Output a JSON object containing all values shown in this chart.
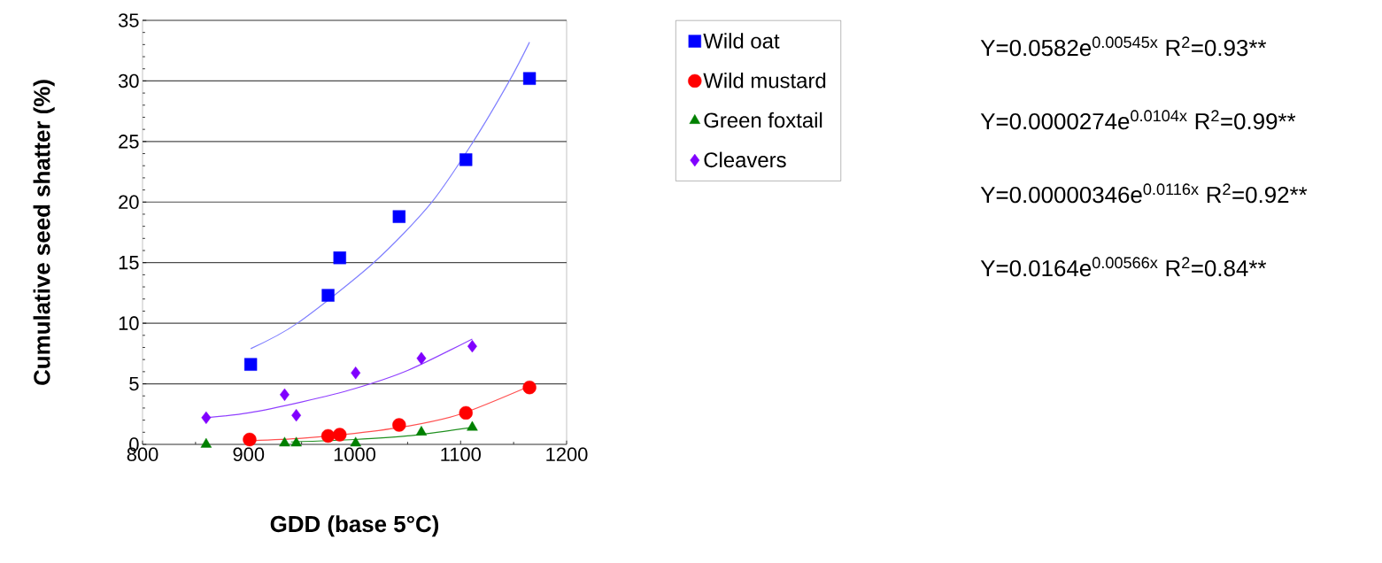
{
  "chart_data": {
    "type": "scatter",
    "xlabel": "GDD (base 5°C)",
    "ylabel": "Cumulative seed shatter (%)",
    "xlim": [
      800,
      1200
    ],
    "xticks": [
      800,
      900,
      1000,
      1100,
      1200
    ],
    "ylim": [
      0,
      35
    ],
    "yticks": [
      0,
      5,
      10,
      15,
      20,
      25,
      30,
      35
    ],
    "grid": "y",
    "legend": "top right",
    "series": [
      {
        "name": "Wild oat",
        "color": "#0000ff",
        "marker": "square",
        "x": [
          902,
          975,
          986,
          1042,
          1105,
          1165
        ],
        "values": [
          6.6,
          12.3,
          15.4,
          18.8,
          23.5,
          30.2
        ]
      },
      {
        "name": "Wild mustard",
        "color": "#ff0000",
        "marker": "circle",
        "x": [
          901,
          975,
          986,
          1042,
          1105,
          1165
        ],
        "values": [
          0.4,
          0.7,
          0.8,
          1.6,
          2.6,
          4.7
        ]
      },
      {
        "name": "Green foxtail",
        "color": "#008000",
        "marker": "triangle",
        "x": [
          860,
          934,
          945,
          1001,
          1063,
          1111
        ],
        "values": [
          0.0,
          0.1,
          0.1,
          0.1,
          1.0,
          1.4
        ]
      },
      {
        "name": "Cleavers",
        "color": "#8000ff",
        "marker": "diamond",
        "x": [
          860,
          934,
          945,
          1001,
          1063,
          1111
        ],
        "values": [
          2.2,
          4.1,
          2.4,
          5.9,
          7.1,
          8.1
        ]
      },
      {
        "type": "line",
        "color": "#8080ff",
        "marker": "none",
        "x": [
          902,
          946,
          1018,
          1072,
          1112,
          1146,
          1165
        ],
        "values": [
          7.9,
          10.0,
          15.0,
          19.9,
          25.0,
          30.0,
          33.2
        ]
      },
      {
        "type": "line",
        "color": "#ff5050",
        "marker": "none",
        "x": [
          902,
          950,
          1000,
          1050,
          1100,
          1165
        ],
        "values": [
          0.3,
          0.5,
          0.9,
          1.5,
          2.5,
          4.8
        ]
      },
      {
        "type": "line",
        "color": "#209020",
        "marker": "none",
        "x": [
          940,
          1000,
          1050,
          1111
        ],
        "values": [
          0.2,
          0.4,
          0.7,
          1.4
        ]
      },
      {
        "type": "line",
        "color": "#9040ff",
        "marker": "none",
        "x": [
          860,
          900,
          950,
          1000,
          1050,
          1111
        ],
        "values": [
          2.2,
          2.6,
          3.5,
          4.6,
          6.1,
          8.7
        ]
      }
    ],
    "annotations": [
      "Y=0.0582e$^{0.00545x}$ R$^{2}$=0.93**",
      "Y=0.0000274e$^{0.0104x}$ R$^{2}$=0.99**",
      "Y=0.00000346e$^{0.0116x}$ R$^{2}$=0.92**",
      "Y=0.0164e$^{0.00566x}$ R$^{2}$=0.84**"
    ]
  }
}
